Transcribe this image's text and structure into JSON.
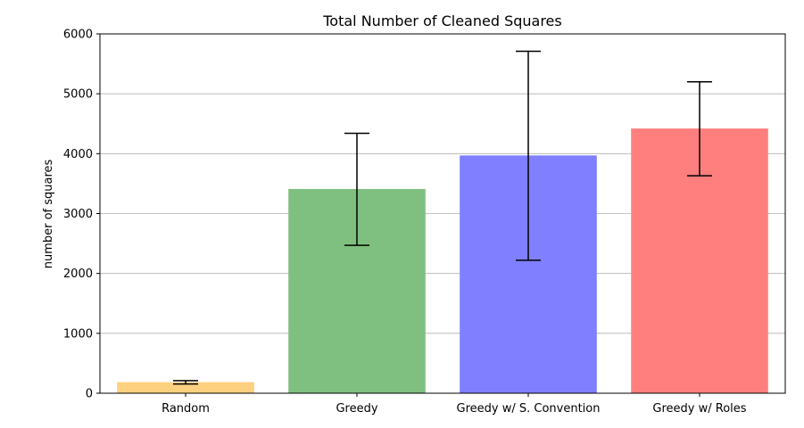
{
  "chart_data": {
    "type": "bar",
    "title": "Total Number of Cleaned Squares",
    "xlabel": "",
    "ylabel": "number of squares",
    "categories": [
      "Random",
      "Greedy",
      "Greedy w/ S. Convention",
      "Greedy w/ Roles"
    ],
    "values": [
      185,
      3410,
      3970,
      4420
    ],
    "error_low": [
      155,
      2470,
      2220,
      3630
    ],
    "error_high": [
      210,
      4340,
      5710,
      5200
    ],
    "colors": [
      "#fdd080",
      "#7fbf7f",
      "#7f7fff",
      "#ff7f7f"
    ],
    "ylim": [
      0,
      6000
    ],
    "yticks": [
      0,
      1000,
      2000,
      3000,
      4000,
      5000,
      6000
    ],
    "grid": "horizontal",
    "legend": "none"
  }
}
